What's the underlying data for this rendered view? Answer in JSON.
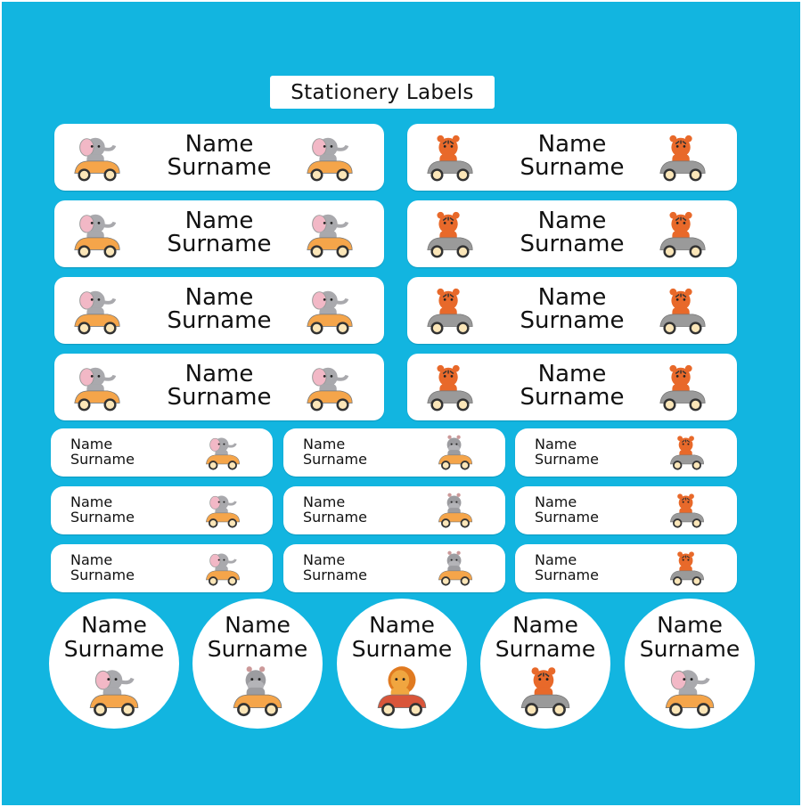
{
  "title": "Stationery Labels",
  "colors": {
    "background": "#12b5e0",
    "label": "#ffffff"
  },
  "large_labels": [
    {
      "name": "Name",
      "surname": "Surname",
      "animal": "elephant"
    },
    {
      "name": "Name",
      "surname": "Surname",
      "animal": "tiger"
    },
    {
      "name": "Name",
      "surname": "Surname",
      "animal": "elephant"
    },
    {
      "name": "Name",
      "surname": "Surname",
      "animal": "tiger"
    },
    {
      "name": "Name",
      "surname": "Surname",
      "animal": "elephant"
    },
    {
      "name": "Name",
      "surname": "Surname",
      "animal": "tiger"
    },
    {
      "name": "Name",
      "surname": "Surname",
      "animal": "elephant"
    },
    {
      "name": "Name",
      "surname": "Surname",
      "animal": "tiger"
    }
  ],
  "small_labels": [
    {
      "name": "Name",
      "surname": "Surname",
      "animal": "elephant"
    },
    {
      "name": "Name",
      "surname": "Surname",
      "animal": "hippo"
    },
    {
      "name": "Name",
      "surname": "Surname",
      "animal": "tiger"
    },
    {
      "name": "Name",
      "surname": "Surname",
      "animal": "elephant"
    },
    {
      "name": "Name",
      "surname": "Surname",
      "animal": "hippo"
    },
    {
      "name": "Name",
      "surname": "Surname",
      "animal": "tiger"
    },
    {
      "name": "Name",
      "surname": "Surname",
      "animal": "elephant"
    },
    {
      "name": "Name",
      "surname": "Surname",
      "animal": "hippo"
    },
    {
      "name": "Name",
      "surname": "Surname",
      "animal": "tiger"
    }
  ],
  "round_labels": [
    {
      "name": "Name",
      "surname": "Surname",
      "animal": "elephant"
    },
    {
      "name": "Name",
      "surname": "Surname",
      "animal": "hippo"
    },
    {
      "name": "Name",
      "surname": "Surname",
      "animal": "lion"
    },
    {
      "name": "Name",
      "surname": "Surname",
      "animal": "tiger"
    },
    {
      "name": "Name",
      "surname": "Surname",
      "animal": "elephant"
    }
  ]
}
